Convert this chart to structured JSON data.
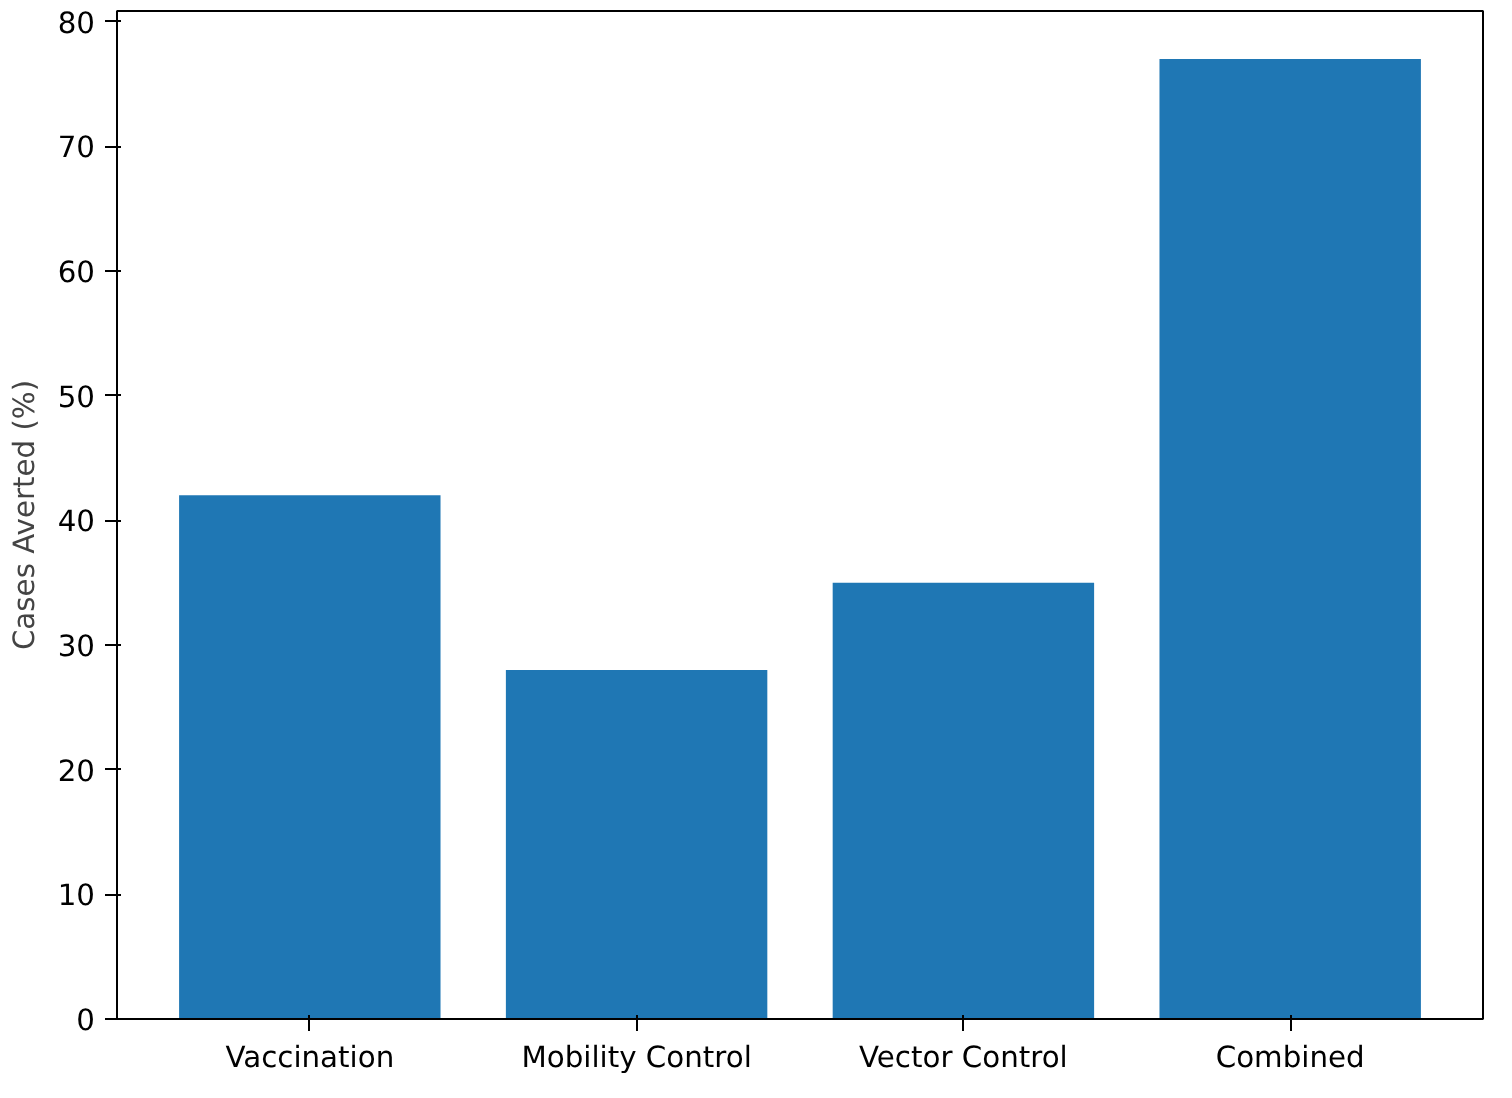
{
  "chart_data": {
    "type": "bar",
    "ylabel": "Cases Averted (%)",
    "categories": [
      "Vaccination",
      "Mobility Control",
      "Vector Control",
      "Combined"
    ],
    "values": [
      42,
      28,
      35,
      77
    ],
    "color": "#1f77b4",
    "ylim": [
      0,
      80.85
    ],
    "yticks": [
      0,
      10,
      20,
      30,
      40,
      50,
      60,
      70,
      80
    ],
    "grid": false
  }
}
